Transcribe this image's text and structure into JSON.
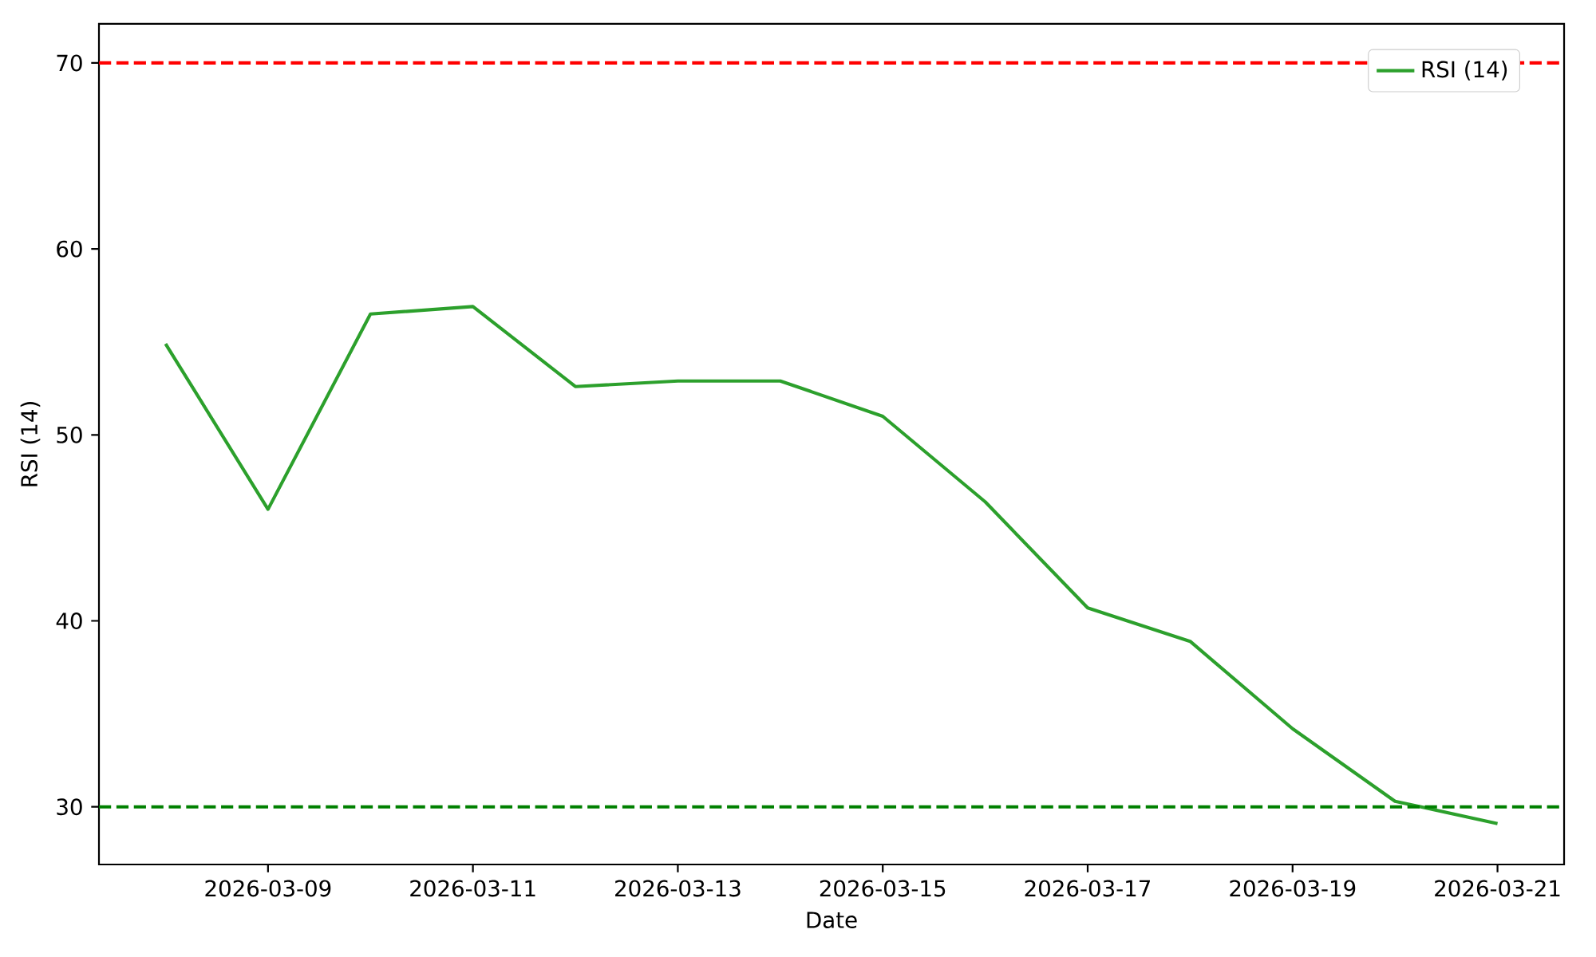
{
  "chart_data": {
    "type": "line",
    "xlabel": "Date",
    "ylabel": "RSI (14)",
    "x": [
      "2026-03-08",
      "2026-03-09",
      "2026-03-10",
      "2026-03-11",
      "2026-03-12",
      "2026-03-13",
      "2026-03-14",
      "2026-03-15",
      "2026-03-16",
      "2026-03-17",
      "2026-03-18",
      "2026-03-19",
      "2026-03-20",
      "2026-03-21"
    ],
    "series": [
      {
        "name": "RSI (14)",
        "color": "#2ca02c",
        "values": [
          54.9,
          46.0,
          56.5,
          56.9,
          52.6,
          52.9,
          52.9,
          51.0,
          46.4,
          40.7,
          38.9,
          34.2,
          30.3,
          29.1
        ]
      }
    ],
    "xlim": [
      "2026-03-07T08:24",
      "2026-03-21T15:36"
    ],
    "xticks": [
      "2026-03-09",
      "2026-03-11",
      "2026-03-13",
      "2026-03-15",
      "2026-03-17",
      "2026-03-19",
      "2026-03-21"
    ],
    "ylim": [
      26.9,
      72.1
    ],
    "yticks": [
      30,
      40,
      50,
      60,
      70
    ],
    "ref_lines": [
      {
        "axis": "y",
        "value": 70,
        "color": "#ff0000",
        "line_style": "dashed"
      },
      {
        "axis": "y",
        "value": 30,
        "color": "#008000",
        "line_style": "dashed"
      }
    ],
    "legend": "top right",
    "grid": false,
    "line_style": "solid"
  }
}
